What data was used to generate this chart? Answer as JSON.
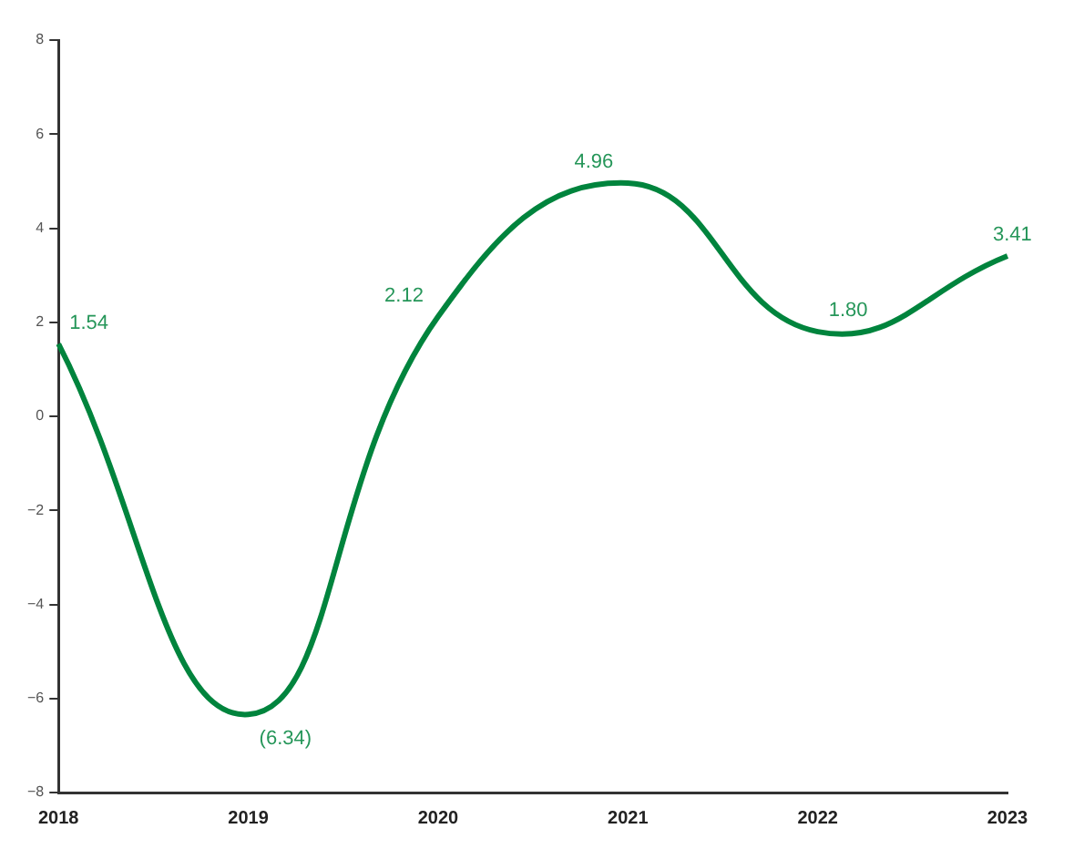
{
  "chart_data": {
    "type": "line",
    "categories": [
      "2018",
      "2019",
      "2020",
      "2021",
      "2022",
      "2023"
    ],
    "series": [
      {
        "color": "#00843d",
        "values": [
          1.54,
          -6.34,
          2.12,
          4.96,
          1.8,
          3.41
        ],
        "value_labels": [
          "1.54",
          "(6.34)",
          "2.12",
          "4.96",
          "1.80",
          "3.41"
        ]
      }
    ],
    "ylim": [
      -8,
      8
    ],
    "yticks": [
      {
        "value": -8,
        "label": "−8"
      },
      {
        "value": -6,
        "label": "−6"
      },
      {
        "value": -4,
        "label": "−4"
      },
      {
        "value": -2,
        "label": "−2"
      },
      0,
      2,
      4,
      6,
      8
    ],
    "grid": false,
    "legend": false,
    "marker": "none",
    "line_style": "solid"
  }
}
